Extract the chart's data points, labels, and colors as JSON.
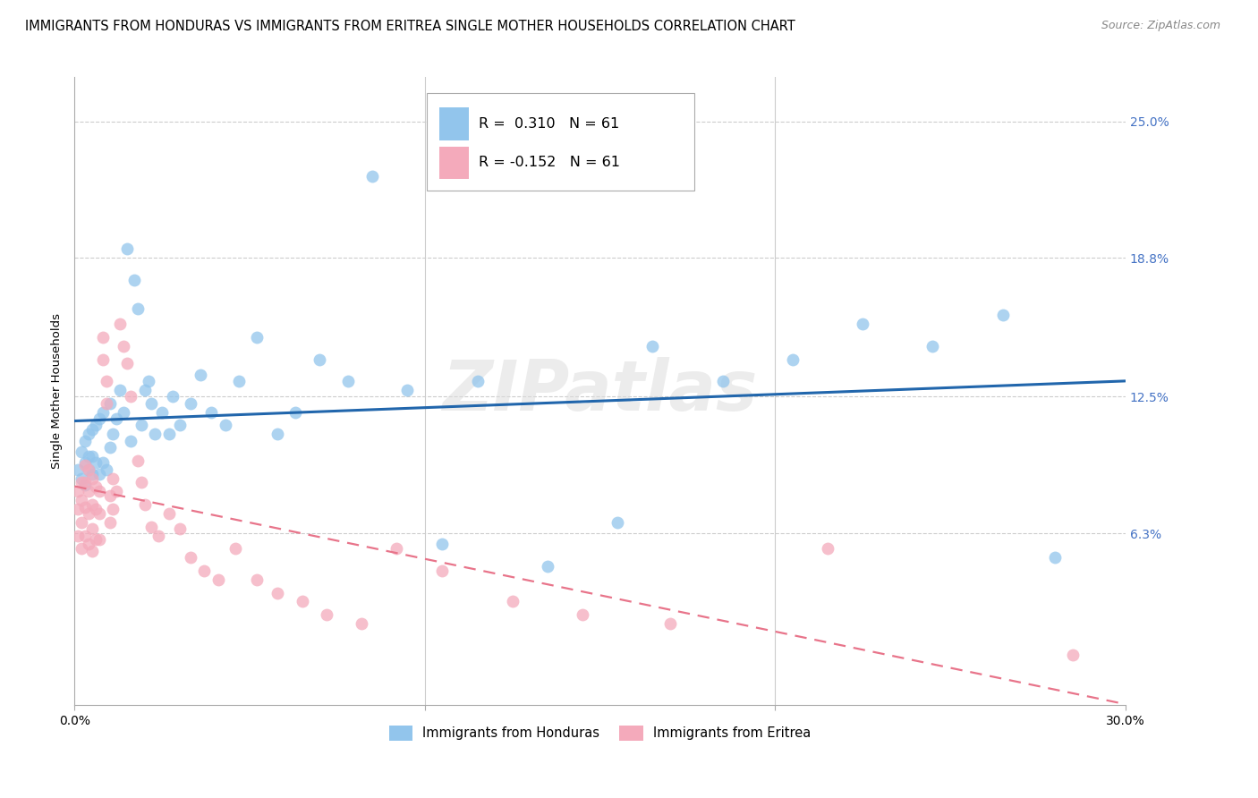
{
  "title": "IMMIGRANTS FROM HONDURAS VS IMMIGRANTS FROM ERITREA SINGLE MOTHER HOUSEHOLDS CORRELATION CHART",
  "source": "Source: ZipAtlas.com",
  "ylabel": "Single Mother Households",
  "ytick_labels": [
    "25.0%",
    "18.8%",
    "12.5%",
    "6.3%"
  ],
  "ytick_values": [
    0.25,
    0.188,
    0.125,
    0.063
  ],
  "xlim": [
    0.0,
    0.3
  ],
  "ylim": [
    -0.015,
    0.27
  ],
  "r_honduras": 0.31,
  "n_honduras": 61,
  "r_eritrea": -0.152,
  "n_eritrea": 61,
  "color_honduras": "#92C5EC",
  "color_eritrea": "#F4AABB",
  "line_color_honduras": "#2166AC",
  "line_color_eritrea": "#E8748A",
  "watermark": "ZIPatlas",
  "title_fontsize": 10.5,
  "axis_label_fontsize": 9.5,
  "tick_label_fontsize": 10,
  "source_fontsize": 9,
  "honduras_scatter_x": [
    0.001,
    0.002,
    0.002,
    0.003,
    0.003,
    0.003,
    0.004,
    0.004,
    0.004,
    0.005,
    0.005,
    0.005,
    0.006,
    0.006,
    0.007,
    0.007,
    0.008,
    0.008,
    0.009,
    0.01,
    0.01,
    0.011,
    0.012,
    0.013,
    0.014,
    0.015,
    0.016,
    0.017,
    0.018,
    0.019,
    0.02,
    0.021,
    0.022,
    0.023,
    0.025,
    0.027,
    0.028,
    0.03,
    0.033,
    0.036,
    0.039,
    0.043,
    0.047,
    0.052,
    0.058,
    0.063,
    0.07,
    0.078,
    0.085,
    0.095,
    0.105,
    0.115,
    0.135,
    0.155,
    0.165,
    0.185,
    0.205,
    0.225,
    0.245,
    0.265,
    0.28
  ],
  "honduras_scatter_y": [
    0.092,
    0.088,
    0.1,
    0.085,
    0.095,
    0.105,
    0.092,
    0.098,
    0.108,
    0.09,
    0.098,
    0.11,
    0.095,
    0.112,
    0.09,
    0.115,
    0.118,
    0.095,
    0.092,
    0.102,
    0.122,
    0.108,
    0.115,
    0.128,
    0.118,
    0.192,
    0.105,
    0.178,
    0.165,
    0.112,
    0.128,
    0.132,
    0.122,
    0.108,
    0.118,
    0.108,
    0.125,
    0.112,
    0.122,
    0.135,
    0.118,
    0.112,
    0.132,
    0.152,
    0.108,
    0.118,
    0.142,
    0.132,
    0.225,
    0.128,
    0.058,
    0.132,
    0.048,
    0.068,
    0.148,
    0.132,
    0.142,
    0.158,
    0.148,
    0.162,
    0.052
  ],
  "eritrea_scatter_x": [
    0.001,
    0.001,
    0.001,
    0.002,
    0.002,
    0.002,
    0.002,
    0.003,
    0.003,
    0.003,
    0.003,
    0.004,
    0.004,
    0.004,
    0.004,
    0.005,
    0.005,
    0.005,
    0.005,
    0.006,
    0.006,
    0.006,
    0.007,
    0.007,
    0.007,
    0.008,
    0.008,
    0.009,
    0.009,
    0.01,
    0.01,
    0.011,
    0.011,
    0.012,
    0.013,
    0.014,
    0.015,
    0.016,
    0.018,
    0.019,
    0.02,
    0.022,
    0.024,
    0.027,
    0.03,
    0.033,
    0.037,
    0.041,
    0.046,
    0.052,
    0.058,
    0.065,
    0.072,
    0.082,
    0.092,
    0.105,
    0.125,
    0.145,
    0.17,
    0.215,
    0.285
  ],
  "eritrea_scatter_y": [
    0.082,
    0.074,
    0.062,
    0.086,
    0.078,
    0.068,
    0.056,
    0.094,
    0.086,
    0.075,
    0.062,
    0.092,
    0.082,
    0.072,
    0.058,
    0.088,
    0.076,
    0.065,
    0.055,
    0.084,
    0.074,
    0.06,
    0.082,
    0.072,
    0.06,
    0.152,
    0.142,
    0.132,
    0.122,
    0.08,
    0.068,
    0.088,
    0.074,
    0.082,
    0.158,
    0.148,
    0.14,
    0.125,
    0.096,
    0.086,
    0.076,
    0.066,
    0.062,
    0.072,
    0.065,
    0.052,
    0.046,
    0.042,
    0.056,
    0.042,
    0.036,
    0.032,
    0.026,
    0.022,
    0.056,
    0.046,
    0.032,
    0.026,
    0.022,
    0.056,
    0.008
  ]
}
